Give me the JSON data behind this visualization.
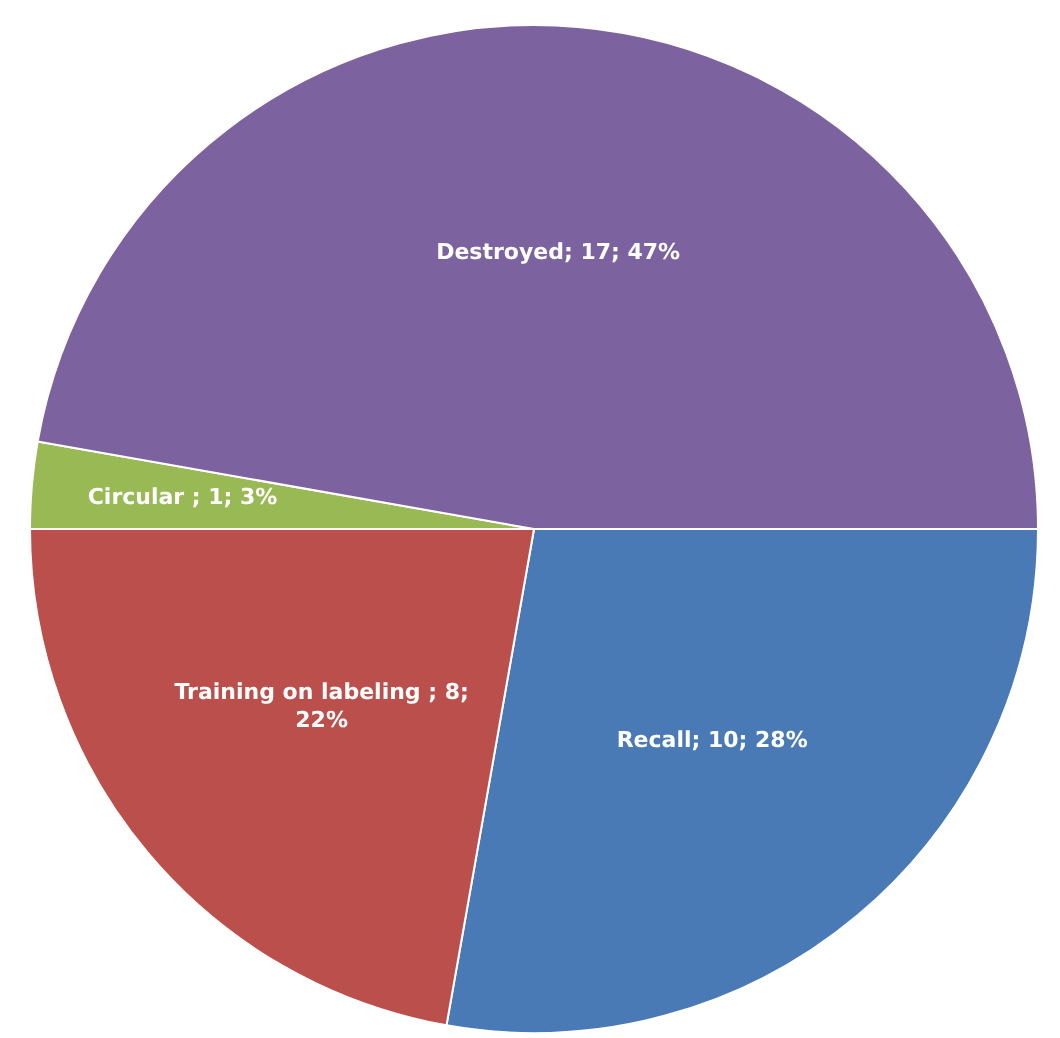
{
  "chart_data": {
    "type": "pie",
    "categories": [
      "Recall",
      "Training on labeling",
      "Circular",
      "Destroyed"
    ],
    "values": [
      10,
      8,
      1,
      17
    ],
    "colors": [
      "#4a7ab5",
      "#bb4f4c",
      "#98b954",
      "#7d62a0"
    ],
    "value_labels": [
      "; 10; 28%",
      " ; 8; 22%",
      " ; 1; 3%",
      "; 17; 47%"
    ],
    "legend": false
  }
}
